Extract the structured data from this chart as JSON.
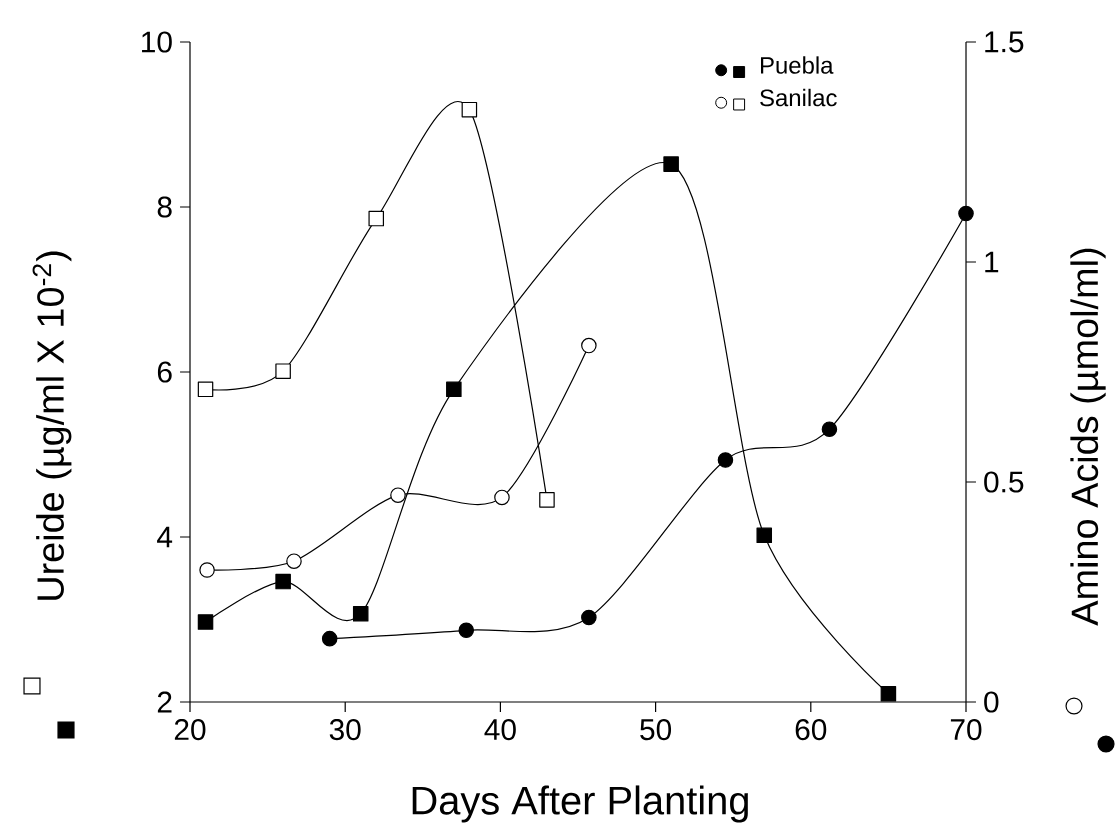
{
  "chart_data": {
    "type": "line",
    "xlabel": "Days After Planting",
    "ylabel": "Ureide (µg/ml X 10$^{-2}$)",
    "y2label": "Amino Acids (µmol/ml)",
    "xlim": [
      20,
      70
    ],
    "xticks": [
      20,
      30,
      40,
      50,
      60,
      70
    ],
    "ylim": [
      2,
      10
    ],
    "yticks": [
      2,
      4,
      6,
      8,
      10
    ],
    "y2lim": [
      0,
      1.5
    ],
    "y2ticks": [
      0,
      0.5,
      1,
      1.5
    ],
    "legend": "top right",
    "grid": false,
    "line_style": "solid",
    "series": [
      {
        "name": "Puebla",
        "axis": "y",
        "marker": "square",
        "color": "#000000",
        "x": [
          21,
          26,
          31,
          37,
          51,
          57,
          65
        ],
        "values": [
          2.97,
          3.46,
          3.07,
          5.79,
          8.52,
          4.02,
          2.1
        ]
      },
      {
        "name": "Sanilac",
        "axis": "y",
        "marker": "square",
        "color": "#ffffff",
        "x": [
          21,
          26,
          32,
          38,
          43
        ],
        "values": [
          5.79,
          6.01,
          7.86,
          9.18,
          4.45
        ]
      },
      {
        "axis": "y2",
        "marker": "circle",
        "color": "#000000",
        "x": [
          29,
          37.8,
          45.7,
          54.5,
          61.2,
          70
        ],
        "values": [
          0.144,
          0.163,
          0.192,
          0.55,
          0.62,
          1.11
        ]
      },
      {
        "axis": "y2",
        "marker": "circle",
        "color": "#ffffff",
        "x": [
          21.1,
          26.7,
          33.4,
          40.1,
          45.7
        ],
        "values": [
          0.3,
          0.32,
          0.47,
          0.465,
          0.81
        ]
      }
    ]
  }
}
